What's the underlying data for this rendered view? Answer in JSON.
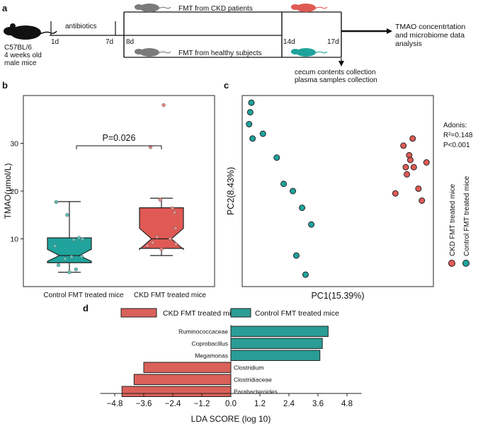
{
  "panel_labels": {
    "a": "a",
    "b": "b",
    "c": "c",
    "d": "d"
  },
  "colors": {
    "ckd": "#e05a55",
    "control": "#1fa39c",
    "mouse_black": "#111111",
    "mouse_grey": "#7b7b7b",
    "line": "#111111",
    "ckd_bar": "#d9615a",
    "control_bar": "#2a9d96"
  },
  "timeline": {
    "mouse_label_1": "C57BL/6",
    "mouse_label_2": "4 weeks old",
    "mouse_label_3": "male mice",
    "antibiotics": "antibiotics",
    "fmt_ckd": "FMT from CKD patients",
    "fmt_healthy": "FMT from healthy subjects",
    "day_1": "1d",
    "day_7": "7d",
    "day_8": "8d",
    "day_14": "14d",
    "day_17": "17d",
    "outcome_1": "TMAO concentrtation",
    "outcome_2": "and microbiome data",
    "outcome_3": "analysis",
    "collection_1": "cecum contents collection",
    "collection_2": "plasma samples collection"
  },
  "chart_data": [
    {
      "type": "box",
      "panel": "b",
      "ylabel": "TMAO(μmol/L)",
      "ylim": [
        0,
        40
      ],
      "yticks": [
        10,
        20,
        30
      ],
      "categories": [
        "Control FMT treated mice",
        "CKD FMT treated mice"
      ],
      "annotation": "P=0.026",
      "boxes": [
        {
          "name": "Control FMT treated mice",
          "min": 3,
          "q1": 5,
          "median": 6.5,
          "q3": 10.2,
          "max": 17.8,
          "notch_low": 5.3,
          "notch_high": 7.8
        },
        {
          "name": "CKD FMT treated mice",
          "min": 6.5,
          "q1": 8,
          "median": 10,
          "q3": 16.5,
          "max": 18.5,
          "notch_low": 7.8,
          "notch_high": 12.2
        }
      ],
      "points": [
        {
          "group": 0,
          "dx": -0.3,
          "y": 17.7
        },
        {
          "group": 0,
          "dx": -0.25,
          "y": 4.5
        },
        {
          "group": 0,
          "dx": -0.05,
          "y": 15
        },
        {
          "group": 0,
          "dx": 0.1,
          "y": 9.8
        },
        {
          "group": 0,
          "dx": 0.22,
          "y": 10.2
        },
        {
          "group": 0,
          "dx": 0.3,
          "y": 9.9
        },
        {
          "group": 0,
          "dx": 0.05,
          "y": 6.2
        },
        {
          "group": 0,
          "dx": -0.1,
          "y": 5.8
        },
        {
          "group": 0,
          "dx": 0.15,
          "y": 3.6
        },
        {
          "group": 0,
          "dx": 0.0,
          "y": 3.0
        },
        {
          "group": 0,
          "dx": -0.33,
          "y": 8.5
        },
        {
          "group": 0,
          "dx": 0.28,
          "y": 6.3
        },
        {
          "group": 1,
          "dx": 0.05,
          "y": 38
        },
        {
          "group": 1,
          "dx": -0.25,
          "y": 29.2
        },
        {
          "group": 1,
          "dx": -0.03,
          "y": 18.2
        },
        {
          "group": 1,
          "dx": 0.25,
          "y": 16.4
        },
        {
          "group": 1,
          "dx": 0.3,
          "y": 15.5
        },
        {
          "group": 1,
          "dx": 0.32,
          "y": 12.2
        },
        {
          "group": 1,
          "dx": -0.32,
          "y": 8.6
        },
        {
          "group": 1,
          "dx": -0.2,
          "y": 9.2
        },
        {
          "group": 1,
          "dx": 0.2,
          "y": 10
        },
        {
          "group": 1,
          "dx": 0.0,
          "y": 7.8
        },
        {
          "group": 1,
          "dx": -0.1,
          "y": 10.4
        },
        {
          "group": 1,
          "dx": 0.33,
          "y": 8.9
        }
      ]
    },
    {
      "type": "scatter",
      "panel": "c",
      "xlabel": "PC1(15.39%)",
      "ylabel": "PC2(8.43%)",
      "annotation": [
        "Adonis:",
        "R²=0.148",
        "P<0.001"
      ],
      "legend": [
        "CKD FMT treated mice",
        "Control FMT treated mice"
      ],
      "series": [
        {
          "name": "Control FMT treated mice",
          "points": [
            [
              -0.46,
              0.49
            ],
            [
              -0.465,
              0.45
            ],
            [
              -0.47,
              0.4
            ],
            [
              -0.41,
              0.36
            ],
            [
              -0.455,
              0.34
            ],
            [
              -0.35,
              0.26
            ],
            [
              -0.32,
              0.15
            ],
            [
              -0.28,
              0.12
            ],
            [
              -0.24,
              0.05
            ],
            [
              -0.2,
              -0.02
            ],
            [
              -0.265,
              -0.15
            ],
            [
              -0.225,
              -0.23
            ]
          ]
        },
        {
          "name": "CKD FMT treated mice",
          "points": [
            [
              0.2,
              0.31
            ],
            [
              0.24,
              0.34
            ],
            [
              0.225,
              0.27
            ],
            [
              0.23,
              0.25
            ],
            [
              0.21,
              0.22
            ],
            [
              0.245,
              0.22
            ],
            [
              0.3,
              0.24
            ],
            [
              0.215,
              0.19
            ],
            [
              0.265,
              0.13
            ],
            [
              0.165,
              0.11
            ],
            [
              0.28,
              0.08
            ]
          ]
        }
      ]
    },
    {
      "type": "bar",
      "panel": "d",
      "orientation": "horizontal",
      "xlabel": "LDA SCORE (log 10)",
      "xlim": [
        -5.4,
        5.4
      ],
      "xticks": [
        -4.8,
        -3.6,
        -2.4,
        -1.2,
        0.0,
        1.2,
        2.4,
        3.6,
        4.8
      ],
      "legend": [
        "CKD FMT treated mice",
        "Control FMT treated mice"
      ],
      "categories": [
        "Ruminococcaceae",
        "Coprobacillus",
        "Megamonas",
        "Clostridium",
        "Clostridiaceae",
        "Parabacteroides"
      ],
      "values": [
        4.02,
        3.78,
        3.68,
        -3.6,
        -4.0,
        -4.5
      ],
      "groups": [
        "control",
        "control",
        "control",
        "ckd",
        "ckd",
        "ckd"
      ]
    }
  ]
}
